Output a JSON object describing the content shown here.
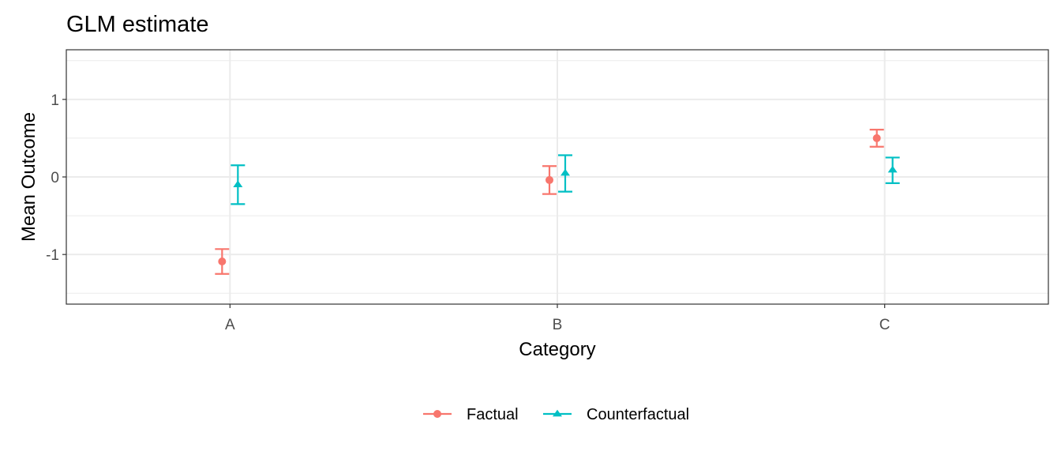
{
  "chart_data": {
    "type": "scatter",
    "title": "GLM estimate",
    "xlabel": "Category",
    "ylabel": "Mean Outcome",
    "categories": [
      "A",
      "B",
      "C"
    ],
    "ylim": [
      -1.64,
      1.64
    ],
    "y_ticks": [
      -1,
      0,
      1
    ],
    "y_tick_labels": [
      "-1",
      "0",
      "1"
    ],
    "grid": true,
    "legend_position": "bottom",
    "series": [
      {
        "name": "Factual",
        "color": "#F8766D",
        "marker": "circle",
        "values": [
          -1.09,
          -0.04,
          0.5
        ],
        "lower": [
          -1.25,
          -0.22,
          0.39
        ],
        "upper": [
          -0.93,
          0.14,
          0.61
        ]
      },
      {
        "name": "Counterfactual",
        "color": "#00BFC4",
        "marker": "triangle",
        "values": [
          -0.1,
          0.05,
          0.09
        ],
        "lower": [
          -0.35,
          -0.19,
          -0.08
        ],
        "upper": [
          0.15,
          0.28,
          0.25
        ]
      }
    ]
  }
}
